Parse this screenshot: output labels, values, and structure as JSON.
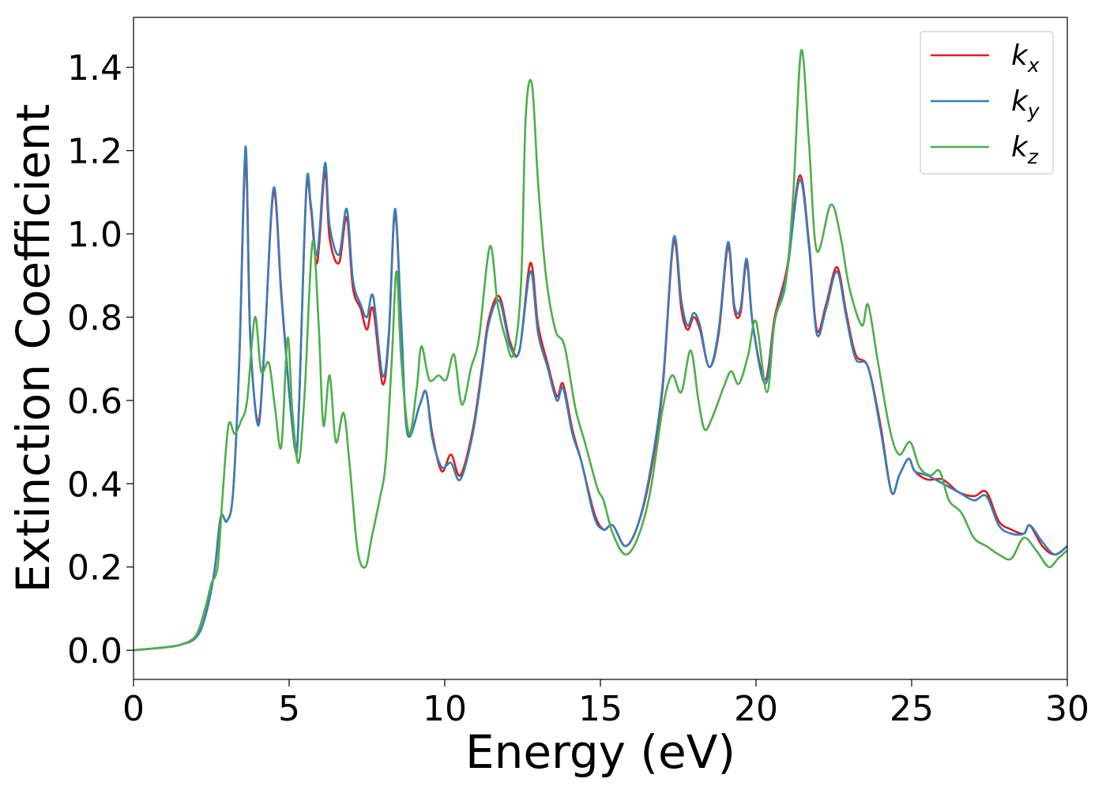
{
  "chart_data": {
    "type": "line",
    "xlabel": "Energy (eV)",
    "ylabel": "Extinction Coefficient",
    "xlim": [
      0,
      30
    ],
    "ylim": [
      -0.07,
      1.52
    ],
    "xticks": [
      0,
      5,
      10,
      15,
      20,
      25,
      30
    ],
    "yticks": [
      0.0,
      0.2,
      0.4,
      0.6,
      0.8,
      1.0,
      1.2,
      1.4
    ],
    "grid": false,
    "legend_position": "top-right",
    "series": [
      {
        "name": "k",
        "sub": "x",
        "color": "#e41a1c",
        "points": [
          [
            0,
            0.0
          ],
          [
            1,
            0.007
          ],
          [
            1.5,
            0.013
          ],
          [
            2,
            0.03
          ],
          [
            2.3,
            0.08
          ],
          [
            2.6,
            0.19
          ],
          [
            2.8,
            0.32
          ],
          [
            3.0,
            0.31
          ],
          [
            3.2,
            0.38
          ],
          [
            3.4,
            0.7
          ],
          [
            3.6,
            1.18
          ],
          [
            3.75,
            0.75
          ],
          [
            4.0,
            0.55
          ],
          [
            4.2,
            0.72
          ],
          [
            4.5,
            1.1
          ],
          [
            4.75,
            0.85
          ],
          [
            5.0,
            0.62
          ],
          [
            5.2,
            0.48
          ],
          [
            5.3,
            0.55
          ],
          [
            5.55,
            1.1
          ],
          [
            5.7,
            1.06
          ],
          [
            5.9,
            0.93
          ],
          [
            6.15,
            1.15
          ],
          [
            6.3,
            0.99
          ],
          [
            6.6,
            0.93
          ],
          [
            6.85,
            1.04
          ],
          [
            7.05,
            0.87
          ],
          [
            7.3,
            0.82
          ],
          [
            7.5,
            0.77
          ],
          [
            7.7,
            0.82
          ],
          [
            8.0,
            0.64
          ],
          [
            8.2,
            0.75
          ],
          [
            8.4,
            1.05
          ],
          [
            8.6,
            0.78
          ],
          [
            8.8,
            0.52
          ],
          [
            9.2,
            0.59
          ],
          [
            9.4,
            0.62
          ],
          [
            9.6,
            0.52
          ],
          [
            9.9,
            0.43
          ],
          [
            10.2,
            0.47
          ],
          [
            10.5,
            0.42
          ],
          [
            10.9,
            0.53
          ],
          [
            11.2,
            0.68
          ],
          [
            11.4,
            0.79
          ],
          [
            11.75,
            0.85
          ],
          [
            12.1,
            0.74
          ],
          [
            12.4,
            0.72
          ],
          [
            12.75,
            0.93
          ],
          [
            13.0,
            0.78
          ],
          [
            13.3,
            0.69
          ],
          [
            13.6,
            0.61
          ],
          [
            13.8,
            0.64
          ],
          [
            14.1,
            0.53
          ],
          [
            14.4,
            0.45
          ],
          [
            14.8,
            0.33
          ],
          [
            15.1,
            0.29
          ],
          [
            15.4,
            0.3
          ],
          [
            15.8,
            0.25
          ],
          [
            16.2,
            0.3
          ],
          [
            16.6,
            0.42
          ],
          [
            17.0,
            0.63
          ],
          [
            17.35,
            0.98
          ],
          [
            17.6,
            0.82
          ],
          [
            17.8,
            0.77
          ],
          [
            18.0,
            0.8
          ],
          [
            18.2,
            0.77
          ],
          [
            18.5,
            0.68
          ],
          [
            18.8,
            0.76
          ],
          [
            19.1,
            0.97
          ],
          [
            19.3,
            0.82
          ],
          [
            19.5,
            0.81
          ],
          [
            19.7,
            0.93
          ],
          [
            19.9,
            0.78
          ],
          [
            20.3,
            0.65
          ],
          [
            20.6,
            0.8
          ],
          [
            21.0,
            0.92
          ],
          [
            21.4,
            1.14
          ],
          [
            21.7,
            0.98
          ],
          [
            21.95,
            0.77
          ],
          [
            22.25,
            0.83
          ],
          [
            22.6,
            0.92
          ],
          [
            22.9,
            0.81
          ],
          [
            23.2,
            0.71
          ],
          [
            23.6,
            0.68
          ],
          [
            24.0,
            0.54
          ],
          [
            24.35,
            0.38
          ],
          [
            24.6,
            0.42
          ],
          [
            24.9,
            0.46
          ],
          [
            25.1,
            0.43
          ],
          [
            25.5,
            0.41
          ],
          [
            26.0,
            0.41
          ],
          [
            26.5,
            0.38
          ],
          [
            27.0,
            0.37
          ],
          [
            27.4,
            0.38
          ],
          [
            27.8,
            0.31
          ],
          [
            28.2,
            0.29
          ],
          [
            28.6,
            0.28
          ],
          [
            28.8,
            0.3
          ],
          [
            29.2,
            0.25
          ],
          [
            29.6,
            0.23
          ],
          [
            30,
            0.25
          ]
        ]
      },
      {
        "name": "k",
        "sub": "y",
        "color": "#377eb8",
        "points": [
          [
            0,
            0.0
          ],
          [
            1,
            0.007
          ],
          [
            1.5,
            0.013
          ],
          [
            2,
            0.03
          ],
          [
            2.3,
            0.08
          ],
          [
            2.6,
            0.19
          ],
          [
            2.8,
            0.32
          ],
          [
            3.0,
            0.31
          ],
          [
            3.2,
            0.38
          ],
          [
            3.4,
            0.7
          ],
          [
            3.6,
            1.21
          ],
          [
            3.75,
            0.76
          ],
          [
            4.0,
            0.54
          ],
          [
            4.2,
            0.72
          ],
          [
            4.5,
            1.11
          ],
          [
            4.75,
            0.86
          ],
          [
            5.0,
            0.62
          ],
          [
            5.2,
            0.48
          ],
          [
            5.3,
            0.55
          ],
          [
            5.55,
            1.11
          ],
          [
            5.7,
            1.07
          ],
          [
            5.9,
            0.95
          ],
          [
            6.15,
            1.17
          ],
          [
            6.3,
            1.02
          ],
          [
            6.6,
            0.95
          ],
          [
            6.85,
            1.06
          ],
          [
            7.05,
            0.89
          ],
          [
            7.3,
            0.83
          ],
          [
            7.5,
            0.8
          ],
          [
            7.7,
            0.85
          ],
          [
            8.0,
            0.66
          ],
          [
            8.2,
            0.76
          ],
          [
            8.4,
            1.06
          ],
          [
            8.6,
            0.79
          ],
          [
            8.8,
            0.52
          ],
          [
            9.2,
            0.59
          ],
          [
            9.4,
            0.62
          ],
          [
            9.6,
            0.51
          ],
          [
            9.9,
            0.44
          ],
          [
            10.2,
            0.45
          ],
          [
            10.5,
            0.41
          ],
          [
            10.9,
            0.52
          ],
          [
            11.2,
            0.67
          ],
          [
            11.4,
            0.78
          ],
          [
            11.75,
            0.84
          ],
          [
            12.1,
            0.73
          ],
          [
            12.4,
            0.72
          ],
          [
            12.75,
            0.91
          ],
          [
            13.0,
            0.76
          ],
          [
            13.3,
            0.68
          ],
          [
            13.6,
            0.6
          ],
          [
            13.8,
            0.63
          ],
          [
            14.1,
            0.52
          ],
          [
            14.4,
            0.45
          ],
          [
            14.8,
            0.32
          ],
          [
            15.1,
            0.29
          ],
          [
            15.4,
            0.3
          ],
          [
            15.8,
            0.25
          ],
          [
            16.2,
            0.3
          ],
          [
            16.6,
            0.43
          ],
          [
            17.0,
            0.64
          ],
          [
            17.35,
            0.99
          ],
          [
            17.6,
            0.84
          ],
          [
            17.8,
            0.78
          ],
          [
            18.0,
            0.81
          ],
          [
            18.2,
            0.78
          ],
          [
            18.5,
            0.68
          ],
          [
            18.8,
            0.77
          ],
          [
            19.1,
            0.98
          ],
          [
            19.3,
            0.83
          ],
          [
            19.5,
            0.82
          ],
          [
            19.7,
            0.94
          ],
          [
            19.9,
            0.78
          ],
          [
            20.3,
            0.64
          ],
          [
            20.6,
            0.79
          ],
          [
            21.0,
            0.91
          ],
          [
            21.4,
            1.13
          ],
          [
            21.7,
            0.97
          ],
          [
            21.95,
            0.76
          ],
          [
            22.25,
            0.82
          ],
          [
            22.6,
            0.91
          ],
          [
            22.9,
            0.8
          ],
          [
            23.2,
            0.7
          ],
          [
            23.6,
            0.68
          ],
          [
            24.0,
            0.53
          ],
          [
            24.35,
            0.38
          ],
          [
            24.6,
            0.42
          ],
          [
            24.9,
            0.46
          ],
          [
            25.1,
            0.43
          ],
          [
            25.5,
            0.42
          ],
          [
            26.0,
            0.4
          ],
          [
            26.5,
            0.38
          ],
          [
            27.0,
            0.36
          ],
          [
            27.4,
            0.37
          ],
          [
            27.8,
            0.3
          ],
          [
            28.2,
            0.28
          ],
          [
            28.6,
            0.28
          ],
          [
            28.8,
            0.3
          ],
          [
            29.2,
            0.26
          ],
          [
            29.6,
            0.23
          ],
          [
            30,
            0.25
          ]
        ]
      },
      {
        "name": "k",
        "sub": "z",
        "color": "#4daf4a",
        "points": [
          [
            0,
            0.0
          ],
          [
            1,
            0.007
          ],
          [
            1.5,
            0.013
          ],
          [
            2,
            0.035
          ],
          [
            2.3,
            0.1
          ],
          [
            2.5,
            0.16
          ],
          [
            2.7,
            0.2
          ],
          [
            2.85,
            0.36
          ],
          [
            3.05,
            0.54
          ],
          [
            3.25,
            0.52
          ],
          [
            3.45,
            0.55
          ],
          [
            3.65,
            0.6
          ],
          [
            3.9,
            0.8
          ],
          [
            4.1,
            0.67
          ],
          [
            4.35,
            0.69
          ],
          [
            4.55,
            0.58
          ],
          [
            4.75,
            0.49
          ],
          [
            4.95,
            0.75
          ],
          [
            5.1,
            0.58
          ],
          [
            5.3,
            0.45
          ],
          [
            5.5,
            0.62
          ],
          [
            5.75,
            0.98
          ],
          [
            5.95,
            0.78
          ],
          [
            6.1,
            0.54
          ],
          [
            6.3,
            0.66
          ],
          [
            6.5,
            0.5
          ],
          [
            6.75,
            0.57
          ],
          [
            6.95,
            0.44
          ],
          [
            7.2,
            0.24
          ],
          [
            7.45,
            0.2
          ],
          [
            7.65,
            0.27
          ],
          [
            7.9,
            0.36
          ],
          [
            8.1,
            0.45
          ],
          [
            8.3,
            0.7
          ],
          [
            8.45,
            0.91
          ],
          [
            8.6,
            0.7
          ],
          [
            8.85,
            0.52
          ],
          [
            9.1,
            0.63
          ],
          [
            9.25,
            0.73
          ],
          [
            9.5,
            0.65
          ],
          [
            9.8,
            0.66
          ],
          [
            10.05,
            0.65
          ],
          [
            10.3,
            0.71
          ],
          [
            10.55,
            0.59
          ],
          [
            10.85,
            0.68
          ],
          [
            11.1,
            0.75
          ],
          [
            11.45,
            0.97
          ],
          [
            11.7,
            0.83
          ],
          [
            11.95,
            0.75
          ],
          [
            12.2,
            0.71
          ],
          [
            12.45,
            0.88
          ],
          [
            12.6,
            1.28
          ],
          [
            12.8,
            1.36
          ],
          [
            13.0,
            1.12
          ],
          [
            13.25,
            0.9
          ],
          [
            13.55,
            0.77
          ],
          [
            13.85,
            0.73
          ],
          [
            14.2,
            0.58
          ],
          [
            14.5,
            0.5
          ],
          [
            14.9,
            0.39
          ],
          [
            15.1,
            0.36
          ],
          [
            15.4,
            0.28
          ],
          [
            15.8,
            0.23
          ],
          [
            16.2,
            0.27
          ],
          [
            16.6,
            0.38
          ],
          [
            17.0,
            0.58
          ],
          [
            17.3,
            0.66
          ],
          [
            17.6,
            0.62
          ],
          [
            17.9,
            0.72
          ],
          [
            18.15,
            0.6
          ],
          [
            18.35,
            0.53
          ],
          [
            18.6,
            0.56
          ],
          [
            18.95,
            0.63
          ],
          [
            19.2,
            0.67
          ],
          [
            19.45,
            0.64
          ],
          [
            19.75,
            0.71
          ],
          [
            20.0,
            0.79
          ],
          [
            20.35,
            0.62
          ],
          [
            20.6,
            0.79
          ],
          [
            20.95,
            0.88
          ],
          [
            21.2,
            1.1
          ],
          [
            21.45,
            1.44
          ],
          [
            21.7,
            1.22
          ],
          [
            21.95,
            0.96
          ],
          [
            22.4,
            1.07
          ],
          [
            22.7,
            1.0
          ],
          [
            23.0,
            0.87
          ],
          [
            23.4,
            0.78
          ],
          [
            23.6,
            0.83
          ],
          [
            23.9,
            0.7
          ],
          [
            24.3,
            0.53
          ],
          [
            24.6,
            0.47
          ],
          [
            24.95,
            0.5
          ],
          [
            25.25,
            0.44
          ],
          [
            25.6,
            0.42
          ],
          [
            25.9,
            0.43
          ],
          [
            26.2,
            0.36
          ],
          [
            26.6,
            0.33
          ],
          [
            27.0,
            0.27
          ],
          [
            27.4,
            0.25
          ],
          [
            27.8,
            0.23
          ],
          [
            28.2,
            0.22
          ],
          [
            28.6,
            0.27
          ],
          [
            29.0,
            0.24
          ],
          [
            29.4,
            0.2
          ],
          [
            29.7,
            0.22
          ],
          [
            30,
            0.24
          ]
        ]
      }
    ]
  }
}
